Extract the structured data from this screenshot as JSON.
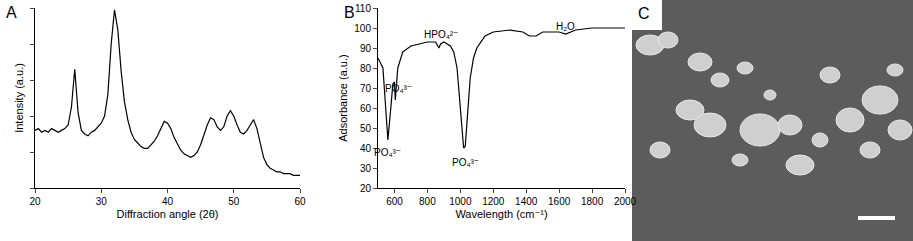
{
  "chart_data": [
    {
      "type": "line",
      "title": "A",
      "color": "#000000",
      "xlabel": "Diffraction angle (2θ)",
      "ylabel": "Intensity (a.u.)",
      "x": [
        20,
        20.5,
        21,
        21.5,
        22,
        22.5,
        23,
        23.5,
        24,
        24.5,
        25,
        25.5,
        26,
        26.5,
        27,
        27.5,
        28,
        28.5,
        29,
        29.5,
        30,
        30.5,
        31,
        31.5,
        32,
        32.5,
        33,
        33.5,
        34,
        34.5,
        35,
        35.5,
        36,
        36.5,
        37,
        37.5,
        38,
        38.5,
        39,
        39.5,
        40,
        40.5,
        41,
        41.5,
        42,
        42.5,
        43,
        43.5,
        44,
        44.5,
        45,
        45.5,
        46,
        46.5,
        47,
        47.5,
        48,
        48.5,
        49,
        49.5,
        50,
        50.5,
        51,
        51.5,
        52,
        52.5,
        53,
        53.5,
        54,
        54.5,
        55,
        55.5,
        56,
        56.5,
        57,
        57.5,
        58,
        58.5,
        59,
        59.5,
        60
      ],
      "values": [
        32,
        33,
        31,
        32,
        31,
        33,
        32,
        31,
        32,
        33,
        35,
        45,
        66,
        42,
        32,
        30,
        29,
        31,
        32,
        34,
        36,
        40,
        52,
        80,
        99,
        88,
        65,
        48,
        38,
        31,
        27,
        25,
        23,
        22,
        22,
        24,
        26,
        29,
        33,
        37,
        36,
        33,
        28,
        24,
        21,
        19,
        18,
        17,
        18,
        20,
        24,
        30,
        35,
        39,
        38,
        34,
        32,
        34,
        40,
        43,
        40,
        35,
        31,
        30,
        32,
        35,
        38,
        33,
        24,
        17,
        13,
        11,
        10,
        9,
        9,
        8,
        8,
        8,
        7,
        7,
        7
      ],
      "xlim": [
        20,
        60
      ],
      "xticks": [
        20,
        30,
        40,
        50,
        60
      ],
      "ylim": [
        0,
        100
      ],
      "yticks": [
        0,
        20,
        40,
        60,
        80,
        100
      ],
      "tick_labels": "x"
    },
    {
      "type": "line",
      "title": "B",
      "color": "#000000",
      "xlabel": "Wavelength (cm⁻¹)",
      "ylabel": "Adsorbance (a.u.)",
      "x": [
        500,
        530,
        560,
        570,
        580,
        590,
        600,
        605,
        612,
        620,
        650,
        700,
        800,
        850,
        870,
        880,
        900,
        940,
        960,
        980,
        1000,
        1020,
        1030,
        1040,
        1060,
        1080,
        1100,
        1150,
        1200,
        1300,
        1380,
        1420,
        1460,
        1500,
        1600,
        1640,
        1700,
        1800,
        2000
      ],
      "values": [
        85,
        80,
        44,
        52,
        62,
        72,
        73,
        64,
        72,
        80,
        88,
        91,
        93,
        93,
        90,
        92,
        93,
        91,
        88,
        80,
        60,
        40,
        41,
        52,
        75,
        85,
        90,
        96,
        98,
        99,
        98,
        96,
        96,
        98,
        98,
        97,
        99,
        100,
        100
      ],
      "xlim": [
        500,
        2000
      ],
      "xticks": [
        600,
        800,
        1000,
        1200,
        1400,
        1600,
        1800,
        2000
      ],
      "ylim": [
        20,
        110
      ],
      "yticks": [
        20,
        30,
        40,
        50,
        60,
        70,
        80,
        90,
        100,
        110
      ],
      "annotations": [
        {
          "text": "PO₄³⁻",
          "x": 560,
          "y": 38
        },
        {
          "text": "PO₄³⁻",
          "x": 625,
          "y": 70
        },
        {
          "text": "HPO₄²⁻",
          "x": 880,
          "y": 97
        },
        {
          "text": "PO₄³⁻",
          "x": 1030,
          "y": 33
        },
        {
          "text": "H₂O",
          "x": 1640,
          "y": 101
        }
      ]
    },
    {
      "type": "image",
      "title": "C"
    }
  ]
}
